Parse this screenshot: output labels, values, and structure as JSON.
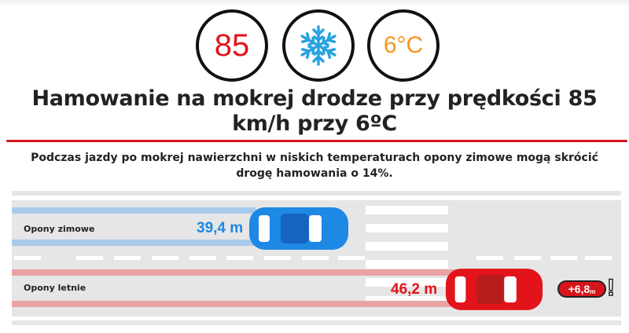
{
  "badges": {
    "speed": "85",
    "weather_icon": "snowflake-icon",
    "temperature": "6°C"
  },
  "title": "Hamowanie na mokrej drodze przy prędkości 85 km/h przy 6ºC",
  "subtitle": "Podczas jazdy po mokrej nawierzchni w niskich temperaturach opony zimowe mogą skrócić drogę hamowania o 14%.",
  "lanes": [
    {
      "label": "Opony zimowe",
      "distance": "39,4 m",
      "color": "#1e88e5"
    },
    {
      "label": "Opony letnie",
      "distance": "46,2 m",
      "color": "#e3131b"
    }
  ],
  "difference": {
    "value": "+6,8",
    "unit": "m",
    "mark": "!"
  },
  "colors": {
    "accent": "#d7141c",
    "blue": "#1e88e5",
    "orange": "#f7941d"
  }
}
